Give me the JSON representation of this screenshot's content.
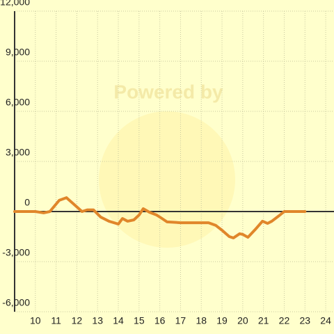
{
  "chart_data": {
    "type": "line",
    "watermark": "Powered by",
    "x": [
      9.0,
      10,
      10.4,
      10.7,
      11.15,
      11.5,
      11.8,
      12.25,
      12.5,
      12.8,
      13.15,
      13.55,
      14.0,
      14.2,
      14.45,
      14.75,
      15.0,
      15.2,
      15.5,
      15.85,
      16.05,
      16.35,
      17.0,
      18.35,
      18.7,
      19.0,
      19.35,
      19.55,
      19.85,
      20.0,
      20.25,
      20.6,
      20.95,
      21.2,
      21.4,
      21.75,
      22.0,
      23.0
    ],
    "series": [
      {
        "color": "#e0862a",
        "values": [
          0,
          0,
          -80,
          0,
          670,
          830,
          500,
          0,
          100,
          100,
          -330,
          -580,
          -750,
          -420,
          -580,
          -500,
          -210,
          170,
          -40,
          -210,
          -370,
          -620,
          -670,
          -670,
          -830,
          -1120,
          -1500,
          -1580,
          -1330,
          -1370,
          -1540,
          -1080,
          -580,
          -710,
          -580,
          -250,
          0,
          0
        ]
      }
    ],
    "xlim": [
      9,
      24.4
    ],
    "xticks": [
      10,
      11,
      12,
      13,
      14,
      15,
      16,
      17,
      18,
      19,
      20,
      21,
      22,
      23,
      24
    ],
    "ylim": [
      -6000,
      12000
    ],
    "yticks": [
      {
        "value": -6000,
        "label": "-6,000"
      },
      {
        "value": -3000,
        "label": "-3,000"
      },
      0,
      {
        "value": 3000,
        "label": "3,000"
      },
      {
        "value": 6000,
        "label": "6,000"
      },
      {
        "value": 9000,
        "label": "9,000"
      },
      {
        "value": 12000,
        "label": "12,000"
      }
    ],
    "grid": true
  }
}
